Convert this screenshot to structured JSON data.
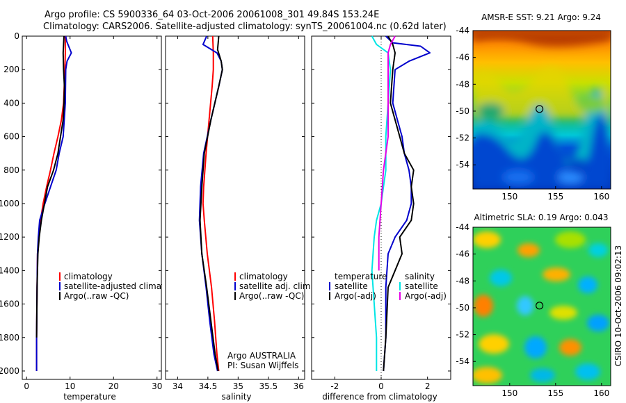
{
  "header": {
    "line1": "Argo profile: CS 5900336_64 03-Oct-2006 20061008_301 49.84S 153.24E",
    "line2": "Climatology: CARS2006. Satellite-adjusted climatology: synTS_20061004.nc (0.62d later)"
  },
  "side_label": "CSIRO 10-Oct-2006 09:02:13",
  "chart_data": [
    {
      "type": "line",
      "xlabel": "temperature",
      "xlim": [
        -1,
        31
      ],
      "ylim": [
        2050,
        0
      ],
      "xticks": [
        "0",
        "10",
        "20",
        "30"
      ],
      "yticks": [
        "0",
        "200",
        "400",
        "600",
        "800",
        "1000",
        "1200",
        "1400",
        "1600",
        "1800",
        "2000"
      ],
      "legend_items": [
        "climatology",
        "satellite-adjusted climatology",
        "Argo(..raw -QC)"
      ],
      "series": [
        {
          "name": "climatology",
          "color": "#ff0000",
          "x": [
            8.9,
            8.9,
            8.9,
            8.8,
            8.5,
            8.0,
            7.2,
            6.3,
            5.5,
            4.6,
            3.8,
            3.2,
            2.8,
            2.5,
            2.4,
            2.3,
            2.3
          ],
          "y": [
            0,
            50,
            100,
            200,
            400,
            500,
            600,
            700,
            800,
            900,
            1000,
            1100,
            1200,
            1300,
            1500,
            1800,
            2000
          ]
        },
        {
          "name": "satellite-adjusted climatology",
          "color": "#0000cc",
          "x": [
            9.0,
            9.2,
            10.3,
            9.3,
            9.0,
            8.9,
            8.4,
            7.5,
            6.8,
            5.5,
            4.2,
            3.0,
            2.7,
            2.5,
            2.4,
            2.3,
            2.3
          ],
          "y": [
            0,
            30,
            100,
            150,
            200,
            400,
            600,
            700,
            800,
            900,
            1000,
            1100,
            1200,
            1300,
            1500,
            1800,
            2000
          ]
        },
        {
          "name": "Argo(..raw -QC)",
          "color": "#000000",
          "x": [
            8.6,
            8.4,
            8.5,
            8.7,
            8.6,
            8.4,
            7.8,
            7.2,
            6.2,
            4.8,
            3.4,
            2.9,
            2.6,
            2.4,
            2.3
          ],
          "y": [
            0,
            100,
            200,
            300,
            400,
            500,
            600,
            700,
            800,
            900,
            1100,
            1200,
            1300,
            1500,
            1800
          ]
        }
      ]
    },
    {
      "type": "line",
      "xlabel": "salinity",
      "xlim": [
        33.8,
        36.1
      ],
      "ylim": [
        2050,
        0
      ],
      "xticks": [
        "34",
        "34.5",
        "35",
        "35.5",
        "36"
      ],
      "legend_items": [
        "climatology",
        "satellite adj. clim.",
        "Argo(..raw -QC)"
      ],
      "annotations": [
        "Argo AUSTRALIA",
        "PI: Susan Wijffels"
      ],
      "series": [
        {
          "name": "climatology",
          "color": "#ff0000",
          "x": [
            34.58,
            34.59,
            34.59,
            34.57,
            34.52,
            34.47,
            34.43,
            34.42,
            34.44,
            34.49,
            34.56,
            34.61,
            34.65,
            34.68
          ],
          "y": [
            0,
            100,
            200,
            300,
            500,
            700,
            900,
            1000,
            1100,
            1300,
            1500,
            1700,
            1900,
            2000
          ]
        },
        {
          "name": "satellite adj. clim.",
          "color": "#0000cc",
          "x": [
            34.48,
            34.42,
            34.65,
            34.72,
            34.74,
            34.68,
            34.55,
            34.43,
            34.38,
            34.36,
            34.4,
            34.47,
            34.53,
            34.6,
            34.66
          ],
          "y": [
            0,
            50,
            100,
            150,
            200,
            300,
            500,
            700,
            900,
            1100,
            1300,
            1500,
            1700,
            1900,
            2000
          ]
        },
        {
          "name": "Argo(..raw -QC)",
          "color": "#000000",
          "x": [
            34.68,
            34.67,
            34.66,
            34.72,
            34.74,
            34.68,
            34.55,
            34.44,
            34.4,
            34.37,
            34.4,
            34.48,
            34.55,
            34.62,
            34.67
          ],
          "y": [
            0,
            40,
            80,
            150,
            200,
            300,
            500,
            700,
            900,
            1100,
            1300,
            1500,
            1700,
            1900,
            2000
          ]
        }
      ]
    },
    {
      "type": "line",
      "xlabel": "difference from climatology",
      "xlim": [
        -3.0,
        3.0
      ],
      "ylim": [
        2050,
        0
      ],
      "xticks": [
        "-2",
        "0",
        "2"
      ],
      "legend_left_title": "temperature",
      "legend_left_items": [
        "satellite",
        "Argo(-adj)"
      ],
      "legend_right_title": "salinity",
      "legend_right_items": [
        "satellite",
        "Argo(-adj)"
      ],
      "series": [
        {
          "name": "temperature satellite",
          "color": "#0000cc",
          "x": [
            0.2,
            0.5,
            1.7,
            2.1,
            1.2,
            0.6,
            0.5,
            0.7,
            0.9,
            1.0,
            1.2,
            1.3,
            1.3,
            1.1,
            0.6,
            0.3,
            0.2,
            0.2,
            0.1
          ],
          "y": [
            0,
            40,
            60,
            100,
            150,
            200,
            400,
            500,
            600,
            700,
            800,
            900,
            1000,
            1100,
            1200,
            1300,
            1500,
            1800,
            2000
          ]
        },
        {
          "name": "temperature Argo(-adj)",
          "color": "#000000",
          "x": [
            0.3,
            0.5,
            0.6,
            0.5,
            0.4,
            0.6,
            0.8,
            1.0,
            1.4,
            1.3,
            1.4,
            1.3,
            0.8,
            0.9,
            0.3,
            0.2,
            0.1
          ],
          "y": [
            0,
            50,
            100,
            200,
            400,
            500,
            600,
            700,
            800,
            900,
            1000,
            1100,
            1200,
            1300,
            1500,
            1800,
            2000
          ]
        },
        {
          "name": "salinity satellite",
          "color": "#00e5e5",
          "x": [
            -0.4,
            -0.2,
            0.3,
            0.4,
            0.3,
            0.2,
            0.2,
            0.1,
            0.0,
            -0.2,
            -0.3,
            -0.4,
            -0.3,
            -0.2,
            -0.2,
            -0.2
          ],
          "y": [
            0,
            50,
            100,
            200,
            400,
            600,
            800,
            900,
            1000,
            1100,
            1200,
            1400,
            1600,
            1800,
            1900,
            2000
          ]
        },
        {
          "name": "salinity Argo(-adj)",
          "color": "#e600e6",
          "x": [
            0.6,
            0.4,
            0.3,
            0.3,
            0.3,
            0.3,
            0.1,
            0.0,
            -0.1,
            -0.1
          ],
          "y": [
            0,
            50,
            100,
            200,
            400,
            600,
            800,
            1000,
            1200,
            1400
          ]
        }
      ]
    },
    {
      "type": "heatmap",
      "title": "AMSR-E SST: 9.21 Argo: 9.24",
      "xlim": [
        146,
        161
      ],
      "ylim": [
        -55.8,
        -44
      ],
      "xticks": [
        "150",
        "155",
        "160"
      ],
      "yticks": [
        "-44",
        "-46",
        "-48",
        "-50",
        "-52",
        "-54"
      ],
      "marker": {
        "lon": 153.24,
        "lat": -49.84
      }
    },
    {
      "type": "heatmap",
      "title": "Altimetric SLA: 0.19 Argo: 0.043",
      "xlim": [
        146,
        161
      ],
      "ylim": [
        -55.8,
        -44
      ],
      "xticks": [
        "150",
        "155",
        "160"
      ],
      "yticks": [
        "-44",
        "-46",
        "-48",
        "-50",
        "-52",
        "-54"
      ],
      "marker": {
        "lon": 153.24,
        "lat": -49.84
      }
    }
  ]
}
